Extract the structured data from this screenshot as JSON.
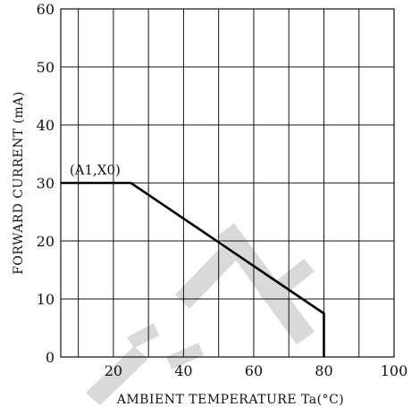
{
  "chart_data": {
    "type": "line",
    "xlabel": "AMBIENT TEMPERATURE Ta(°C)",
    "ylabel": "FORWARD CURRENT (mA)",
    "xlim": [
      5,
      100
    ],
    "ylim": [
      0,
      60
    ],
    "x_ticks": [
      20,
      40,
      60,
      80,
      100
    ],
    "y_ticks": [
      0,
      10,
      20,
      30,
      40,
      50,
      60
    ],
    "grid": true,
    "series": [
      {
        "x": [
          5,
          25,
          80,
          80
        ],
        "y": [
          30,
          30,
          7.5,
          0
        ]
      }
    ],
    "annotations": [
      {
        "text": "(A1,X0)",
        "x": 7.5,
        "y": 31.5
      }
    ],
    "colors": {
      "line": "#000000",
      "grid": "#111111",
      "watermark": "#dcdcdc"
    }
  }
}
